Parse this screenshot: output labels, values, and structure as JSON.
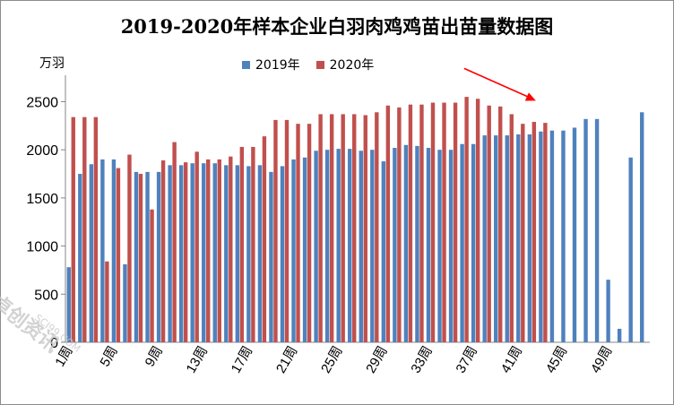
{
  "chart_data": {
    "type": "bar",
    "title": "2019-2020年样本企业白羽肉鸡鸡苗出苗量数据图",
    "ylabel": "万羽",
    "xlabel": "",
    "ylim": [
      0,
      2700
    ],
    "yticks": [
      0,
      500,
      1000,
      1500,
      2000,
      2500
    ],
    "grid": false,
    "legend_position": "top",
    "categories": [
      "1周",
      "2周",
      "3周",
      "4周",
      "5周",
      "6周",
      "7周",
      "8周",
      "9周",
      "10周",
      "11周",
      "12周",
      "13周",
      "14周",
      "15周",
      "16周",
      "17周",
      "18周",
      "19周",
      "20周",
      "21周",
      "22周",
      "23周",
      "24周",
      "25周",
      "26周",
      "27周",
      "28周",
      "29周",
      "30周",
      "31周",
      "32周",
      "33周",
      "34周",
      "35周",
      "36周",
      "37周",
      "38周",
      "39周",
      "40周",
      "41周",
      "42周",
      "43周",
      "44周",
      "45周",
      "46周",
      "47周",
      "48周",
      "49周",
      "50周",
      "51周",
      "52周"
    ],
    "x_tick_labels": [
      "1周",
      "5周",
      "9周",
      "13周",
      "17周",
      "21周",
      "25周",
      "29周",
      "33周",
      "37周",
      "41周",
      "45周",
      "49周"
    ],
    "series": [
      {
        "name": "2019年",
        "color": "#4f81bd",
        "values": [
          780,
          1750,
          1850,
          1900,
          1900,
          810,
          1770,
          1770,
          1770,
          1840,
          1840,
          1860,
          1860,
          1860,
          1840,
          1840,
          1830,
          1840,
          1770,
          1830,
          1900,
          1920,
          1990,
          2000,
          2010,
          2010,
          1990,
          2000,
          1880,
          2020,
          2050,
          2040,
          2020,
          2000,
          2000,
          2060,
          2060,
          2150,
          2150,
          2150,
          2160,
          2160,
          2190,
          2200,
          2200,
          2230,
          2320,
          2320,
          650,
          140,
          1920,
          2390
        ]
      },
      {
        "name": "2020年",
        "color": "#c0504d",
        "values": [
          2340,
          2340,
          2340,
          840,
          1810,
          1950,
          1750,
          1380,
          1890,
          2080,
          1870,
          1980,
          1900,
          1900,
          1930,
          2030,
          2030,
          2140,
          2310,
          2310,
          2270,
          2270,
          2370,
          2370,
          2370,
          2370,
          2360,
          2390,
          2460,
          2440,
          2470,
          2470,
          2490,
          2490,
          2490,
          2550,
          2530,
          2460,
          2450,
          2370,
          2270,
          2290,
          2280,
          null,
          null,
          null,
          null,
          null,
          null,
          null,
          null,
          null
        ]
      }
    ],
    "annotations": [
      {
        "type": "arrow",
        "color": "#ff0000",
        "points_to_category": "43周"
      }
    ]
  },
  "watermark": {
    "text": "卓创资讯",
    "url": "SCI99.COM"
  }
}
